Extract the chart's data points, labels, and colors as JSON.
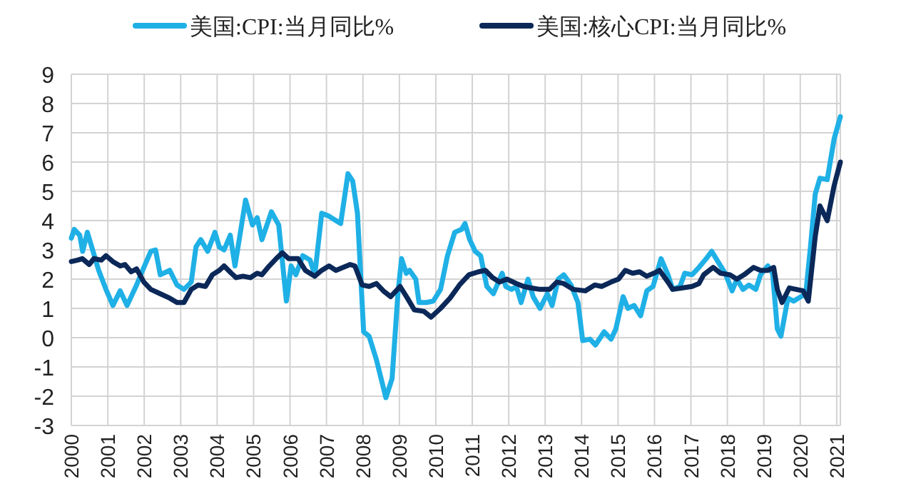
{
  "chart_data": {
    "type": "line",
    "legend": "top",
    "grid": true,
    "marker": "none",
    "line_style": "solid",
    "xlim": [
      2000,
      2021.1
    ],
    "xticks": [
      2000,
      2001,
      2002,
      2003,
      2004,
      2005,
      2006,
      2007,
      2008,
      2009,
      2010,
      2011,
      2012,
      2013,
      2014,
      2015,
      2016,
      2017,
      2018,
      2019,
      2020,
      2021
    ],
    "ylim": [
      -3,
      9
    ],
    "yticks": [
      -3,
      -2,
      -1,
      0,
      1,
      2,
      3,
      4,
      5,
      6,
      7,
      8,
      9
    ],
    "series": [
      {
        "name": "美国:CPI:当月同比%",
        "color": "#1fb0e6",
        "x": [
          2000,
          2000.08,
          2000.23,
          2000.31,
          2000.44,
          2000.56,
          2000.75,
          2000.95,
          2001.14,
          2001.34,
          2001.53,
          2001.79,
          2001.92,
          2002.18,
          2002.31,
          2002.44,
          2002.7,
          2002.9,
          2003.09,
          2003.29,
          2003.42,
          2003.55,
          2003.74,
          2003.94,
          2004.06,
          2004.19,
          2004.36,
          2004.49,
          2004.78,
          2004.97,
          2005.1,
          2005.23,
          2005.49,
          2005.69,
          2005.9,
          2006.03,
          2006.16,
          2006.35,
          2006.55,
          2006.68,
          2006.87,
          2007.07,
          2007.26,
          2007.39,
          2007.59,
          2007.72,
          2007.85,
          2008.02,
          2008.17,
          2008.37,
          2008.5,
          2008.63,
          2008.8,
          2008.96,
          2009.06,
          2009.19,
          2009.28,
          2009.45,
          2009.54,
          2009.74,
          2009.93,
          2010.13,
          2010.32,
          2010.52,
          2010.71,
          2010.8,
          2010.93,
          2011.08,
          2011.23,
          2011.4,
          2011.58,
          2011.82,
          2011.92,
          2012.08,
          2012.21,
          2012.34,
          2012.53,
          2012.67,
          2012.86,
          2013.06,
          2013.19,
          2013.36,
          2013.51,
          2013.71,
          2013.9,
          2014.03,
          2014.23,
          2014.38,
          2014.62,
          2014.81,
          2014.94,
          2015.14,
          2015.27,
          2015.44,
          2015.62,
          2015.79,
          2015.96,
          2016.18,
          2016.37,
          2016.5,
          2016.7,
          2016.83,
          2017.03,
          2017.22,
          2017.42,
          2017.57,
          2017.74,
          2017.94,
          2018.13,
          2018.26,
          2018.43,
          2018.59,
          2018.78,
          2018.91,
          2019.11,
          2019.24,
          2019.37,
          2019.47,
          2019.66,
          2019.82,
          2019.95,
          2020.15,
          2020.28,
          2020.41,
          2020.54,
          2020.74,
          2020.93,
          2021.1
        ],
        "values": [
          3.4,
          3.7,
          3.5,
          2.95,
          3.6,
          3.1,
          2.3,
          1.65,
          1.1,
          1.6,
          1.1,
          1.8,
          2.2,
          2.95,
          3.0,
          2.15,
          2.3,
          1.8,
          1.65,
          1.9,
          3.1,
          3.35,
          2.95,
          3.6,
          3.1,
          3.0,
          3.5,
          2.45,
          4.7,
          3.85,
          4.1,
          3.35,
          4.3,
          3.85,
          1.25,
          2.45,
          2.15,
          2.8,
          2.65,
          2.15,
          4.25,
          4.15,
          4.0,
          3.9,
          5.6,
          5.35,
          4.25,
          0.2,
          0.05,
          -0.75,
          -1.4,
          -2.05,
          -1.4,
          1.5,
          2.7,
          2.2,
          2.3,
          2.0,
          1.2,
          1.2,
          1.25,
          1.65,
          2.8,
          3.6,
          3.7,
          3.9,
          3.35,
          2.95,
          2.8,
          1.75,
          1.5,
          2.2,
          1.75,
          1.65,
          1.75,
          1.2,
          2.0,
          1.4,
          1.0,
          1.5,
          1.1,
          2.0,
          2.15,
          1.8,
          1.2,
          -0.1,
          -0.05,
          -0.25,
          0.2,
          -0.05,
          0.3,
          1.4,
          1.0,
          1.1,
          0.75,
          1.6,
          1.75,
          2.7,
          2.15,
          1.65,
          1.75,
          2.2,
          2.15,
          2.4,
          2.7,
          2.95,
          2.6,
          2.2,
          1.6,
          2.0,
          1.65,
          1.8,
          1.65,
          2.15,
          2.45,
          2.2,
          0.3,
          0.05,
          1.35,
          1.25,
          1.35,
          1.5,
          3.1,
          4.9,
          5.45,
          5.4,
          6.8,
          7.55
        ]
      },
      {
        "name": "美国:核心CPI:当月同比%",
        "color": "#0b2858",
        "x": [
          2000,
          2000.17,
          2000.3,
          2000.49,
          2000.62,
          2000.82,
          2000.95,
          2001.14,
          2001.34,
          2001.47,
          2001.64,
          2001.79,
          2001.99,
          2002.18,
          2002.44,
          2002.7,
          2002.9,
          2003.09,
          2003.29,
          2003.48,
          2003.68,
          2003.87,
          2004.06,
          2004.19,
          2004.39,
          2004.52,
          2004.71,
          2004.91,
          2005.1,
          2005.23,
          2005.43,
          2005.62,
          2005.79,
          2005.96,
          2006.22,
          2006.42,
          2006.68,
          2006.87,
          2007.07,
          2007.26,
          2007.46,
          2007.65,
          2007.78,
          2007.98,
          2008.17,
          2008.37,
          2008.56,
          2008.76,
          2009.02,
          2009.22,
          2009.41,
          2009.67,
          2009.87,
          2010.13,
          2010.39,
          2010.65,
          2010.91,
          2011.17,
          2011.36,
          2011.56,
          2011.75,
          2011.95,
          2012.21,
          2012.41,
          2012.6,
          2012.86,
          2013.12,
          2013.32,
          2013.51,
          2013.77,
          2014.1,
          2014.36,
          2014.55,
          2014.81,
          2015.01,
          2015.2,
          2015.4,
          2015.59,
          2015.79,
          2015.98,
          2016.14,
          2016.37,
          2016.5,
          2016.77,
          2017.03,
          2017.22,
          2017.35,
          2017.61,
          2017.81,
          2018.07,
          2018.26,
          2018.46,
          2018.72,
          2018.91,
          2019.11,
          2019.27,
          2019.37,
          2019.5,
          2019.7,
          2019.89,
          2020.08,
          2020.22,
          2020.41,
          2020.54,
          2020.74,
          2020.93,
          2021.1
        ],
        "values": [
          2.6,
          2.65,
          2.7,
          2.5,
          2.7,
          2.65,
          2.8,
          2.6,
          2.45,
          2.5,
          2.25,
          2.35,
          1.9,
          1.65,
          1.5,
          1.35,
          1.2,
          1.2,
          1.65,
          1.8,
          1.75,
          2.15,
          2.3,
          2.45,
          2.2,
          2.05,
          2.1,
          2.05,
          2.2,
          2.15,
          2.45,
          2.7,
          2.9,
          2.7,
          2.7,
          2.3,
          2.1,
          2.3,
          2.45,
          2.3,
          2.4,
          2.5,
          2.45,
          1.8,
          1.75,
          1.85,
          1.6,
          1.4,
          1.75,
          1.35,
          0.95,
          0.9,
          0.7,
          1.0,
          1.35,
          1.8,
          2.15,
          2.25,
          2.3,
          2.05,
          1.9,
          2.0,
          1.85,
          1.75,
          1.7,
          1.65,
          1.65,
          1.9,
          1.85,
          1.65,
          1.6,
          1.8,
          1.75,
          1.9,
          2.0,
          2.3,
          2.2,
          2.25,
          2.1,
          2.2,
          2.3,
          1.9,
          1.65,
          1.7,
          1.75,
          1.85,
          2.15,
          2.4,
          2.2,
          2.15,
          2.0,
          2.15,
          2.4,
          2.3,
          2.3,
          2.4,
          1.65,
          1.2,
          1.7,
          1.65,
          1.6,
          1.25,
          3.45,
          4.5,
          4.0,
          5.2,
          6.0
        ]
      }
    ]
  }
}
